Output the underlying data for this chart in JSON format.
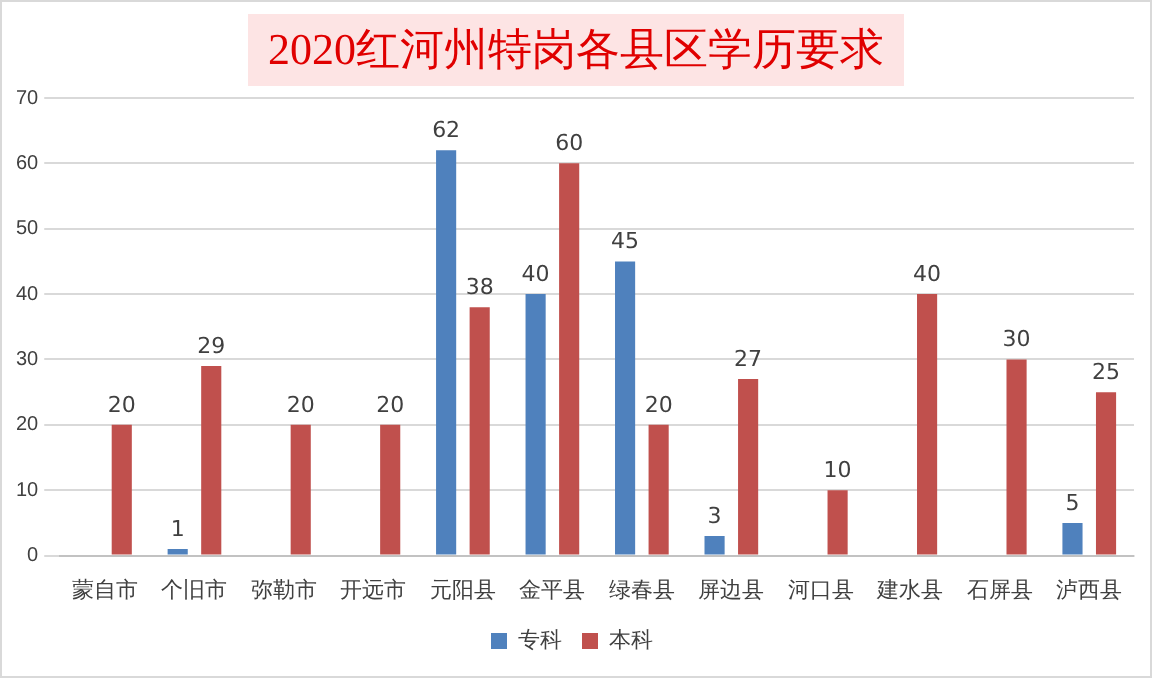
{
  "chart_data": {
    "type": "bar",
    "title": "2020红河州特岗各县区学历要求",
    "categories": [
      "蒙自市",
      "个旧市",
      "弥勒市",
      "开远市",
      "元阳县",
      "金平县",
      "绿春县",
      "屏边县",
      "河口县",
      "建水县",
      "石屏县",
      "泸西县"
    ],
    "series": [
      {
        "name": "专科",
        "color": "#4f81bd",
        "values": [
          null,
          1,
          null,
          null,
          62,
          40,
          45,
          3,
          null,
          null,
          null,
          5
        ]
      },
      {
        "name": "本科",
        "color": "#c0504d",
        "values": [
          20,
          29,
          20,
          20,
          38,
          60,
          20,
          27,
          10,
          40,
          30,
          25
        ]
      }
    ],
    "ylim": [
      0,
      70
    ],
    "yticks": [
      0,
      10,
      20,
      30,
      40,
      50,
      60,
      70
    ],
    "grid": "y",
    "legend": "bottom",
    "data_labels": true
  }
}
